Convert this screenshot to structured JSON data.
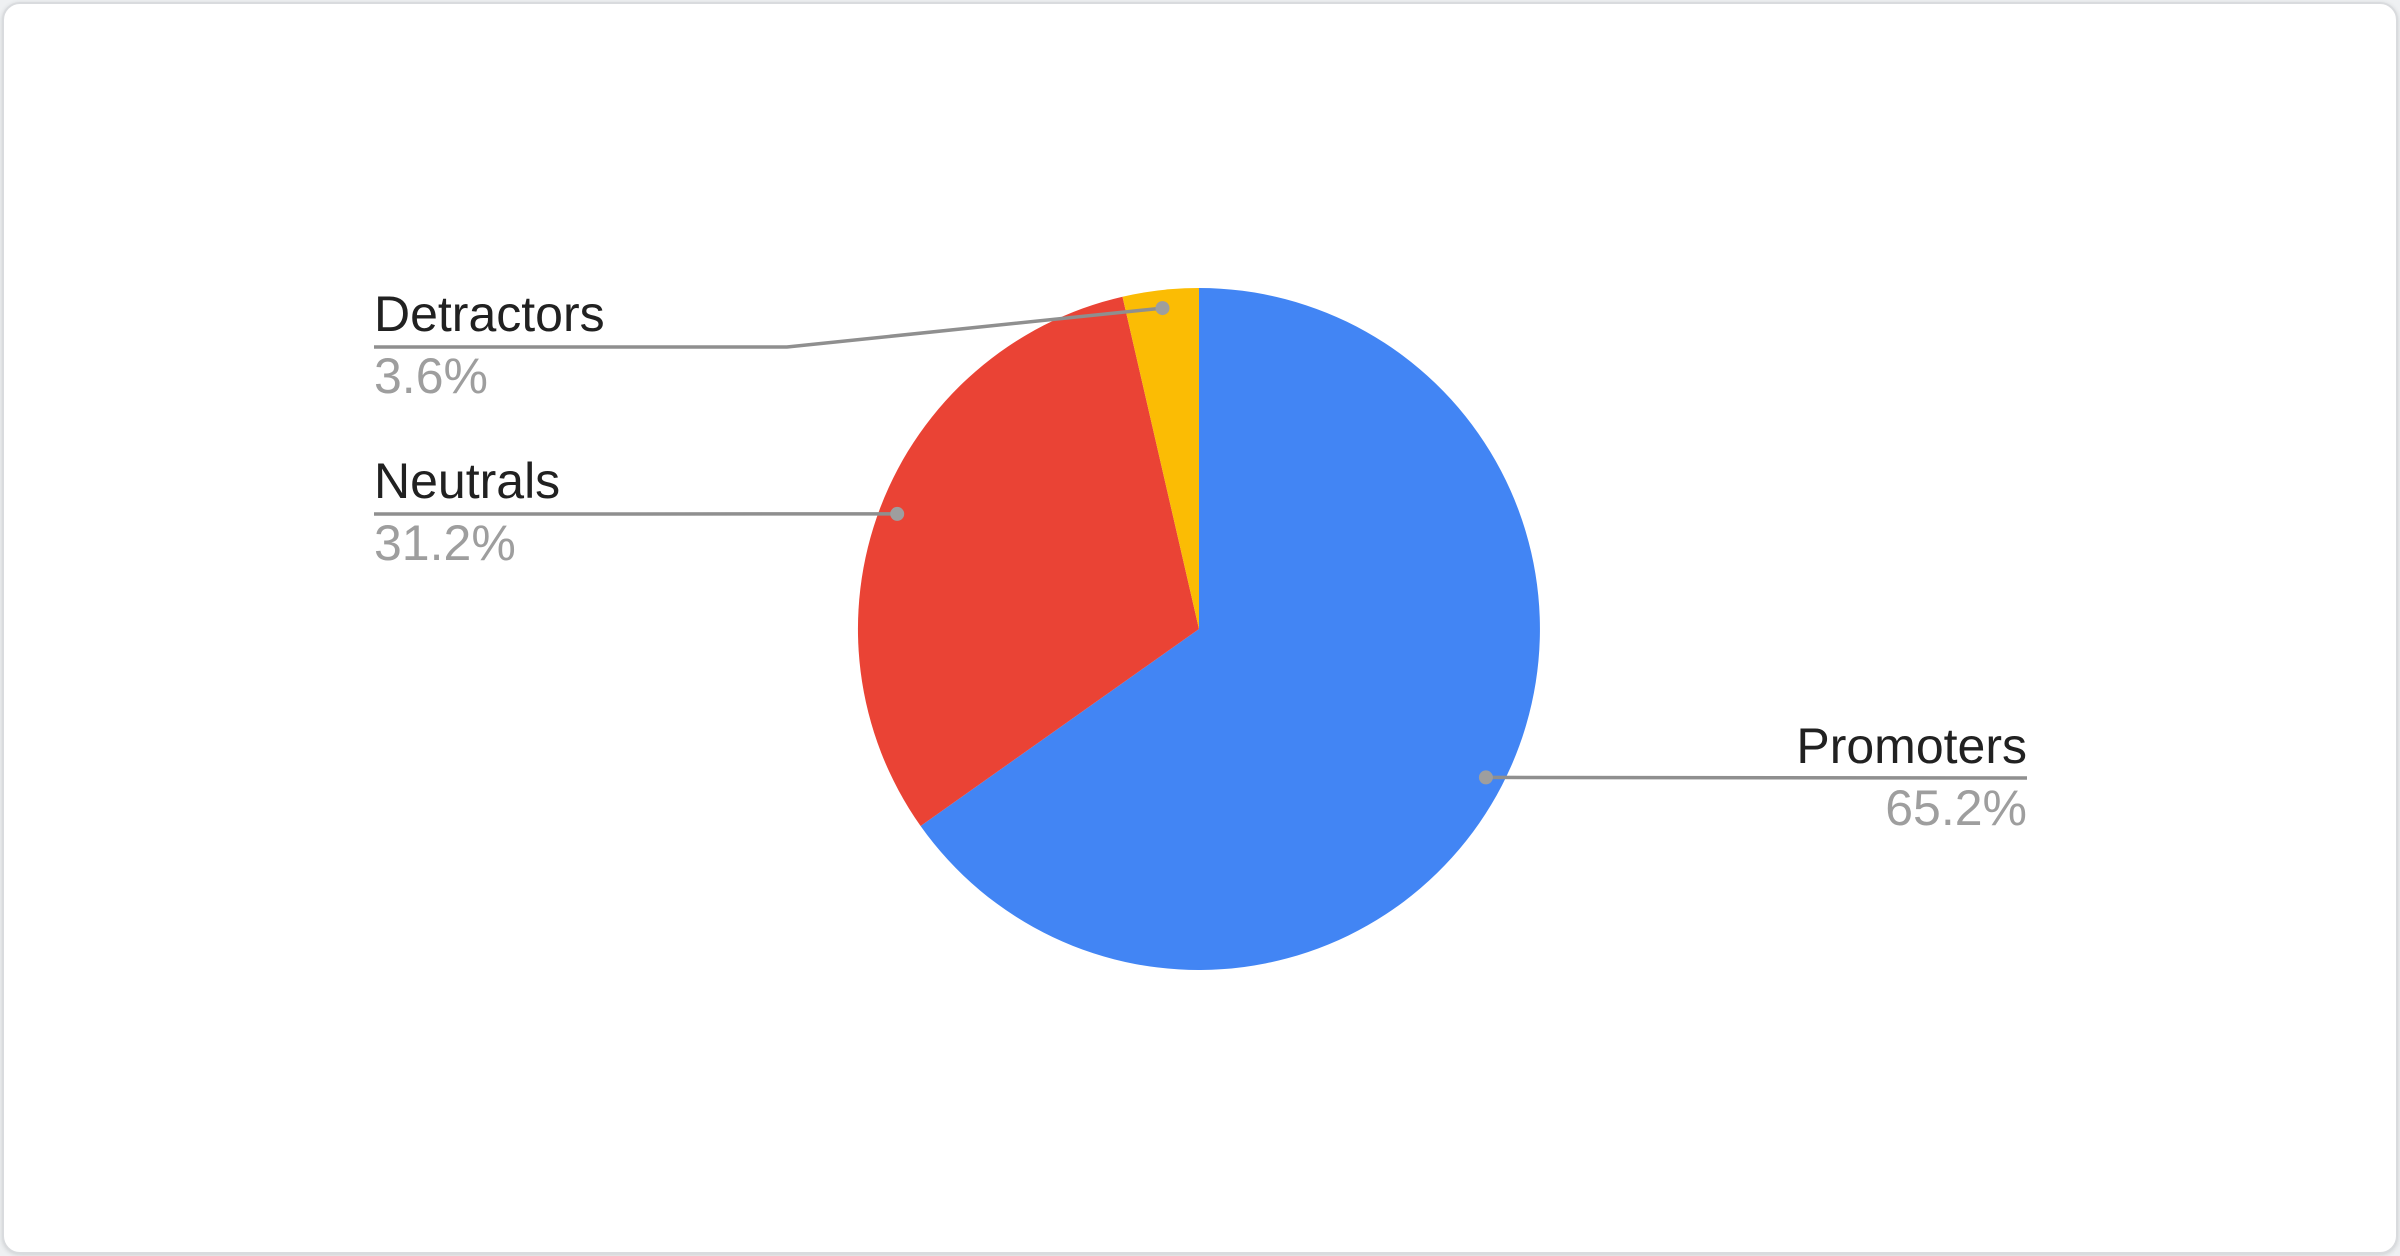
{
  "chart_data": {
    "type": "pie",
    "series": [
      {
        "name": "Promoters",
        "value": 65.2,
        "display": "65.2%",
        "color": "#4285F4"
      },
      {
        "name": "Neutrals",
        "value": 31.2,
        "display": "31.2%",
        "color": "#EA4335"
      },
      {
        "name": "Detractors",
        "value": 3.6,
        "display": "3.6%",
        "color": "#FBBC04"
      }
    ],
    "start_angle_deg": 0,
    "direction": "clockwise",
    "labels_style": "outside-callouts",
    "legend": "none",
    "style": {
      "label_text_color": "#212121",
      "value_text_color": "#9e9e9e",
      "leader_line_color": "#8f8f8f",
      "leader_dot_color": "#9e9e9e",
      "card_background": "#ffffff"
    }
  }
}
